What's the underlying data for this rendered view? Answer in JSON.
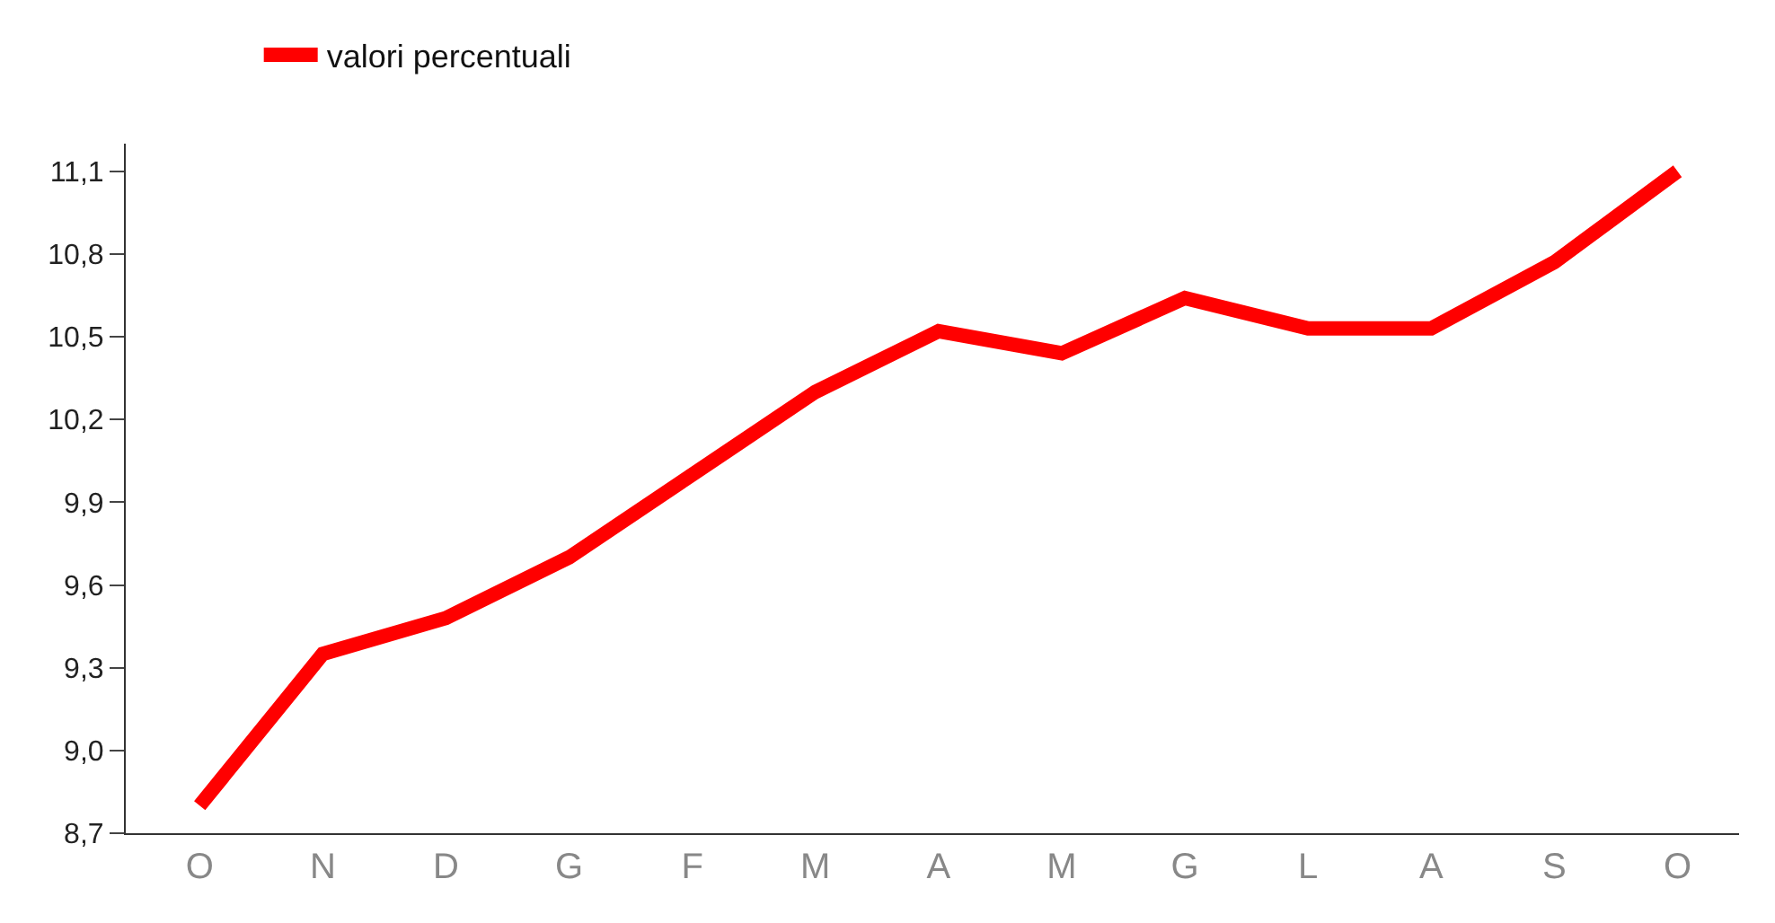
{
  "chart_data": {
    "type": "line",
    "categories": [
      "O",
      "N",
      "D",
      "G",
      "F",
      "M",
      "A",
      "M",
      "G",
      "L",
      "A",
      "S",
      "O"
    ],
    "series": [
      {
        "name": "valori percentuali",
        "color": "#ff0000",
        "values": [
          8.8,
          9.35,
          9.48,
          9.7,
          10.0,
          10.3,
          10.52,
          10.44,
          10.64,
          10.53,
          10.53,
          10.77,
          11.1
        ]
      }
    ],
    "ylim": [
      8.7,
      11.2
    ],
    "yticks": [
      {
        "value": 8.7,
        "label": "8,7"
      },
      {
        "value": 9.0,
        "label": "9,0"
      },
      {
        "value": 9.3,
        "label": "9,3"
      },
      {
        "value": 9.6,
        "label": "9,6"
      },
      {
        "value": 9.9,
        "label": "9,9"
      },
      {
        "value": 10.2,
        "label": "10,2"
      },
      {
        "value": 10.5,
        "label": "10,5"
      },
      {
        "value": 10.8,
        "label": "10,8"
      },
      {
        "value": 11.1,
        "label": "11,1"
      }
    ],
    "legend": "top left",
    "marker": "none",
    "line_style": "solid"
  }
}
